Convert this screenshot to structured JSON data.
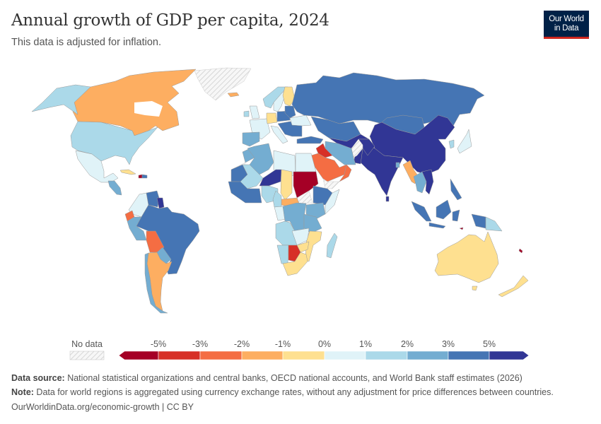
{
  "header": {
    "title": "Annual growth of GDP per capita, 2024",
    "subtitle": "This data is adjusted for inflation.",
    "logo_text": "Our World in Data"
  },
  "chart_data": {
    "type": "choropleth-map",
    "title": "Annual growth of GDP per capita, 2024",
    "unit": "%",
    "legend": {
      "no_data_label": "No data",
      "ticks": [
        "-5%",
        "-3%",
        "-2%",
        "-1%",
        "0%",
        "1%",
        "2%",
        "3%",
        "5%"
      ],
      "breaks": [
        -5,
        -3,
        -2,
        -1,
        0,
        1,
        2,
        3,
        5
      ],
      "colors": [
        "#a50026",
        "#d73027",
        "#f46d43",
        "#fdae61",
        "#fee090",
        "#e0f3f8",
        "#abd9e9",
        "#74add1",
        "#4575b4",
        "#313695"
      ],
      "no_data_color": "#e6e6e6",
      "placement": "bottom"
    },
    "regions": [
      {
        "id": "canada",
        "value": -1.5
      },
      {
        "id": "usa",
        "value": 1.5
      },
      {
        "id": "mexico",
        "value": 0.5
      },
      {
        "id": "greenland",
        "value": null
      },
      {
        "id": "cuba",
        "value": -0.5
      },
      {
        "id": "haiti",
        "value": -5.5
      },
      {
        "id": "dominican-republic",
        "value": 3.5
      },
      {
        "id": "central-america",
        "value": 2.5
      },
      {
        "id": "colombia",
        "value": 0.5
      },
      {
        "id": "venezuela",
        "value": 3.5
      },
      {
        "id": "guyana",
        "value": 5.5
      },
      {
        "id": "ecuador",
        "value": -2.5
      },
      {
        "id": "peru",
        "value": 2.5
      },
      {
        "id": "brazil",
        "value": 3.5
      },
      {
        "id": "bolivia",
        "value": -2.5
      },
      {
        "id": "paraguay",
        "value": 2.5
      },
      {
        "id": "argentina",
        "value": -1.5
      },
      {
        "id": "chile",
        "value": 2.5
      },
      {
        "id": "norway",
        "value": 1.5
      },
      {
        "id": "sweden",
        "value": 0.5
      },
      {
        "id": "finland",
        "value": -0.5
      },
      {
        "id": "uk",
        "value": 0.5
      },
      {
        "id": "ireland",
        "value": 1.5
      },
      {
        "id": "iceland",
        "value": -1.5
      },
      {
        "id": "france",
        "value": 0.5
      },
      {
        "id": "spain",
        "value": 2.5
      },
      {
        "id": "germany",
        "value": -0.5
      },
      {
        "id": "poland",
        "value": 3.5
      },
      {
        "id": "italy",
        "value": 0.5
      },
      {
        "id": "balkans",
        "value": 3.5
      },
      {
        "id": "ukraine",
        "value": 0.5
      },
      {
        "id": "belarus-baltics",
        "value": 3.5
      },
      {
        "id": "russia",
        "value": 4.5
      },
      {
        "id": "kazakhstan",
        "value": 3.5
      },
      {
        "id": "central-asia",
        "value": 5.5
      },
      {
        "id": "mongolia",
        "value": 3.5
      },
      {
        "id": "china",
        "value": 5.5
      },
      {
        "id": "india",
        "value": 5.5
      },
      {
        "id": "pakistan",
        "value": 5.5
      },
      {
        "id": "afghanistan",
        "value": null
      },
      {
        "id": "iran",
        "value": 2.5
      },
      {
        "id": "iraq",
        "value": -3.5
      },
      {
        "id": "saudi-arabia",
        "value": -2.5
      },
      {
        "id": "oman",
        "value": -2.5
      },
      {
        "id": "yemen",
        "value": null
      },
      {
        "id": "turkey",
        "value": 3.5
      },
      {
        "id": "morocco",
        "value": 2.5
      },
      {
        "id": "western-sahara",
        "value": null
      },
      {
        "id": "algeria",
        "value": 2.5
      },
      {
        "id": "libya",
        "value": 0.5
      },
      {
        "id": "egypt",
        "value": 0.5
      },
      {
        "id": "mauritania",
        "value": 3.5
      },
      {
        "id": "mali",
        "value": 1.5
      },
      {
        "id": "niger",
        "value": 5.5
      },
      {
        "id": "chad",
        "value": -0.5
      },
      {
        "id": "sudan",
        "value": -6
      },
      {
        "id": "south-sudan",
        "value": null
      },
      {
        "id": "ethiopia",
        "value": 3.5
      },
      {
        "id": "somalia",
        "value": 0.5
      },
      {
        "id": "nigeria",
        "value": 1.5
      },
      {
        "id": "west-africa",
        "value": 3.5
      },
      {
        "id": "car",
        "value": -1.5
      },
      {
        "id": "cameroon",
        "value": 1.5
      },
      {
        "id": "congo",
        "value": 0.5
      },
      {
        "id": "drc",
        "value": 2.5
      },
      {
        "id": "kenya",
        "value": 2.5
      },
      {
        "id": "tanzania",
        "value": 2.5
      },
      {
        "id": "angola",
        "value": 1.5
      },
      {
        "id": "zambia",
        "value": 0.5
      },
      {
        "id": "mozambique",
        "value": -0.5
      },
      {
        "id": "zimbabwe",
        "value": -0.5
      },
      {
        "id": "namibia",
        "value": 1.5
      },
      {
        "id": "botswana",
        "value": -4
      },
      {
        "id": "south-africa",
        "value": -0.5
      },
      {
        "id": "madagascar",
        "value": 1.5
      },
      {
        "id": "myanmar",
        "value": -1.5
      },
      {
        "id": "thailand",
        "value": 2.5
      },
      {
        "id": "vietnam",
        "value": 5.5
      },
      {
        "id": "sri-lanka",
        "value": 5.5
      },
      {
        "id": "bangladesh",
        "value": 2.5
      },
      {
        "id": "japan",
        "value": 0.5
      },
      {
        "id": "south-korea",
        "value": 1.5
      },
      {
        "id": "indonesia",
        "value": 3.5
      },
      {
        "id": "philippines",
        "value": 3.5
      },
      {
        "id": "papua-new-guinea",
        "value": 1.5
      },
      {
        "id": "timor-leste",
        "value": -6
      },
      {
        "id": "australia",
        "value": -0.5
      },
      {
        "id": "new-zealand",
        "value": -0.5
      },
      {
        "id": "fiji",
        "value": -6
      }
    ]
  },
  "footer": {
    "source_label": "Data source:",
    "source_text": " National statistical organizations and central banks, OECD national accounts, and World Bank staff estimates (2026)",
    "note_label": "Note:",
    "note_text": " Data for world regions is aggregated using currency exchange rates, without any adjustment for price differences between countries.",
    "url": "OurWorldinData.org/economic-growth | CC BY"
  }
}
